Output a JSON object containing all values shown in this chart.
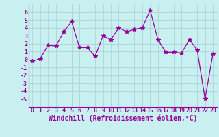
{
  "x": [
    0,
    1,
    2,
    3,
    4,
    5,
    6,
    7,
    8,
    9,
    10,
    11,
    12,
    13,
    14,
    15,
    16,
    17,
    18,
    19,
    20,
    21,
    22,
    23
  ],
  "y": [
    -0.2,
    0.1,
    1.8,
    1.7,
    3.5,
    4.8,
    1.5,
    1.5,
    0.4,
    3.0,
    2.5,
    4.0,
    3.5,
    3.8,
    4.0,
    6.2,
    2.5,
    0.9,
    0.9,
    0.8,
    2.5,
    1.2,
    -5.0,
    0.7
  ],
  "line_color": "#990099",
  "marker": "*",
  "marker_size": 4,
  "background_color": "#c8f0f0",
  "grid_color": "#b0d8d8",
  "xlabel": "Windchill (Refroidissement éolien,°C)",
  "xlabel_color": "#990099",
  "ylim": [
    -6,
    7
  ],
  "yticks": [
    -5,
    -4,
    -3,
    -2,
    -1,
    0,
    1,
    2,
    3,
    4,
    5,
    6
  ],
  "xticks": [
    0,
    1,
    2,
    3,
    4,
    5,
    6,
    7,
    8,
    9,
    10,
    11,
    12,
    13,
    14,
    15,
    16,
    17,
    18,
    19,
    20,
    21,
    22,
    23
  ],
  "tick_color": "#990099",
  "tick_fontsize": 6,
  "xlabel_fontsize": 7,
  "spine_color": "#990099"
}
